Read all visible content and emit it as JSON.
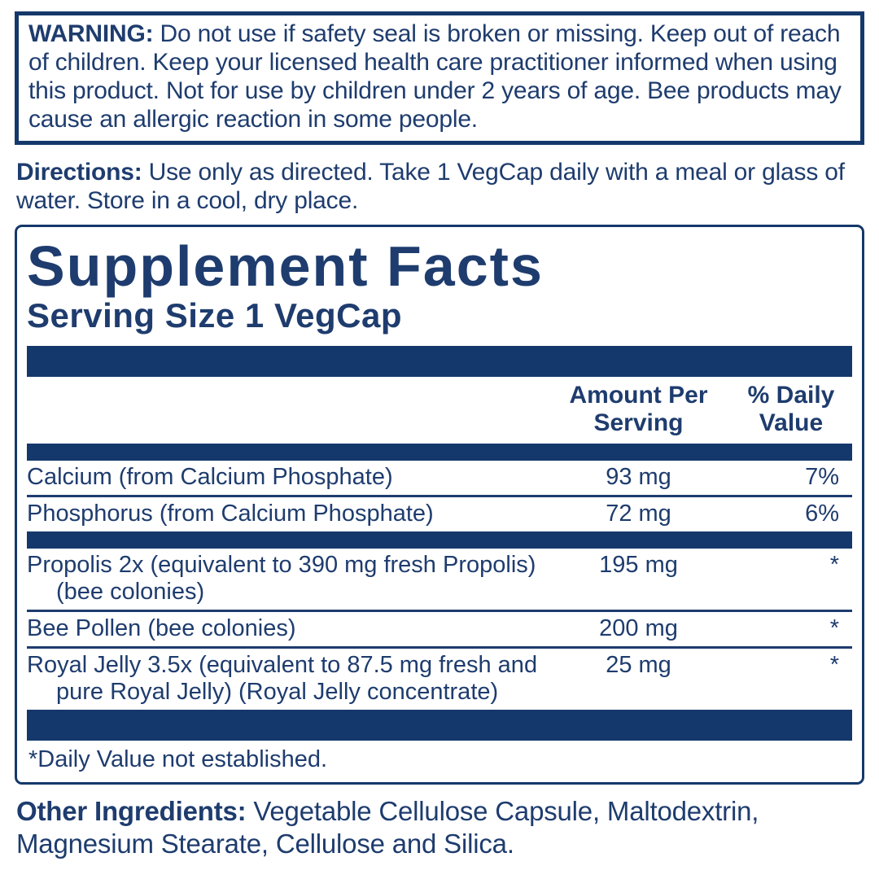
{
  "colors": {
    "navy_text": "#1e3c6e",
    "navy_bar": "#14386b",
    "background": "#ffffff"
  },
  "warning": {
    "label": "WARNING:",
    "text": " Do not use if safety seal is broken or missing. Keep out of reach of children. Keep your licensed health care practitioner informed when using this product. Not for use by children under 2 years of age. Bee products may cause an allergic reaction in some people."
  },
  "directions": {
    "label": "Directions:",
    "text": " Use only as directed. Take 1 VegCap daily with a meal or glass of water. Store in a cool, dry place."
  },
  "supplement_facts": {
    "title": "Supplement Facts",
    "serving_size": "Serving Size 1 VegCap",
    "columns": {
      "amount": "Amount Per\nServing",
      "daily_value": "% Daily\nValue"
    },
    "rows": [
      {
        "name": "Calcium (from Calcium Phosphate)",
        "amount": "93 mg",
        "dv": "7%"
      },
      {
        "name": "Phosphorus (from Calcium Phosphate)",
        "amount": "72 mg",
        "dv": "6%"
      },
      {
        "name": "Propolis 2x (equivalent to 390 mg fresh Propolis) (bee colonies)",
        "amount": "195 mg",
        "dv": "*"
      },
      {
        "name": "Bee Pollen (bee colonies)",
        "amount": "200 mg",
        "dv": "*"
      },
      {
        "name": "Royal Jelly 3.5x (equivalent to 87.5 mg fresh and pure Royal Jelly) (Royal Jelly concentrate)",
        "amount": "25 mg",
        "dv": "*"
      }
    ],
    "footnote": "*Daily Value not established."
  },
  "other_ingredients": {
    "label": "Other Ingredients:",
    "text": " Vegetable Cellulose Capsule, Maltodextrin, Magnesium Stearate, Cellulose and Silica."
  }
}
